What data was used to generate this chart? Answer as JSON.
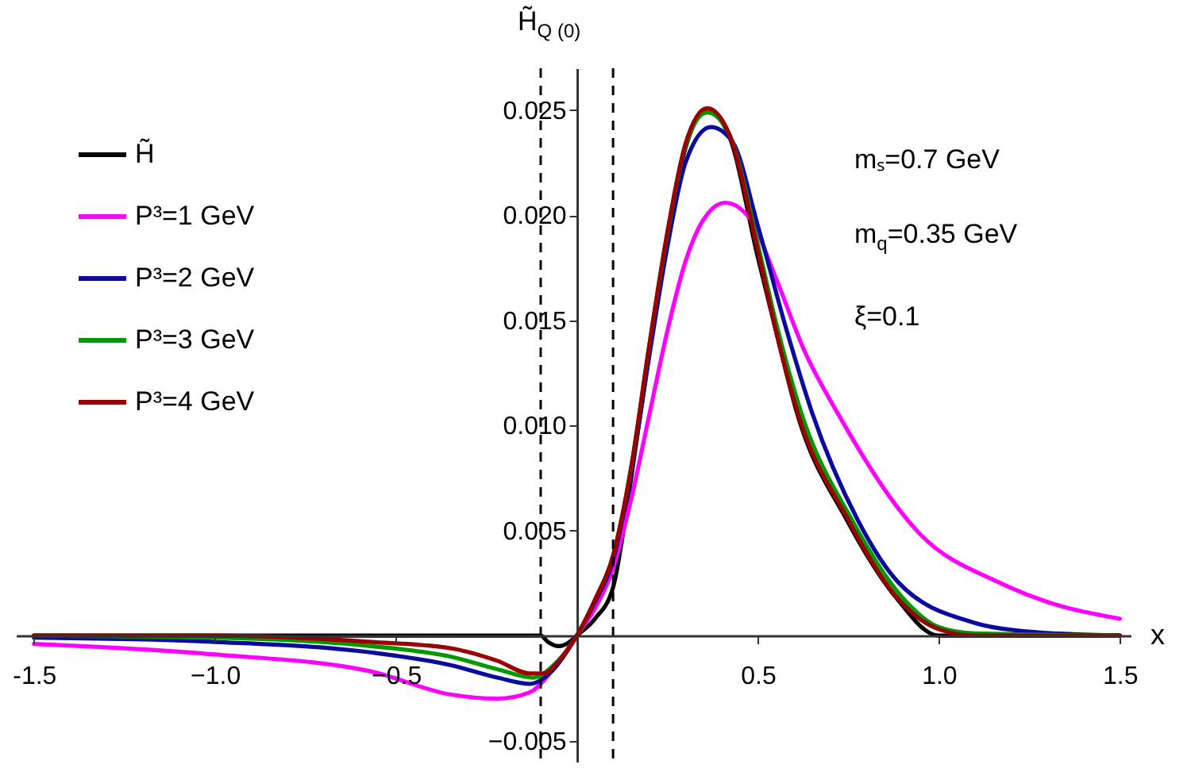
{
  "chart_data": {
    "type": "line",
    "xlabel": "x",
    "xlim": [
      -1.55,
      1.53
    ],
    "ylim": [
      -0.006,
      0.027
    ],
    "xticks": [
      -1.5,
      {
        "value": -1,
        "label": "−1.0"
      },
      {
        "value": -0.5,
        "label": "−0.5"
      },
      0.5,
      {
        "value": 1,
        "label": "1.0"
      },
      1.5
    ],
    "yticks": [
      {
        "value": -0.005,
        "label": "−0.005"
      },
      0.005,
      {
        "value": 0.01,
        "label": "0.010"
      },
      0.015,
      {
        "value": 0.02,
        "label": "0.020"
      },
      0.025
    ],
    "grid": false,
    "legend": "top left",
    "line_style": "solid",
    "marker": "none",
    "annotations": [
      "H̃$_{Q (0)}$",
      "mₛ=0.7 GeV",
      "m$_{q}$=0.35 GeV",
      "ξ=0.1"
    ],
    "ref_lines": [
      {
        "axis": "x",
        "value": -0.1,
        "color": "#000000",
        "line_style": "dashed"
      },
      {
        "axis": "x",
        "value": 0.1,
        "color": "#000000",
        "line_style": "dashed"
      }
    ],
    "series": [
      {
        "name": "H̃",
        "color": "#000000",
        "x": [
          -1.5,
          -1.0,
          -0.5,
          -0.1,
          -0.08,
          -0.05,
          -0.02,
          0,
          0.05,
          0.1,
          0.15,
          0.2,
          0.25,
          0.3,
          0.36,
          0.42,
          0.5,
          0.55,
          0.608,
          0.746,
          0.878,
          1.0,
          1.2,
          1.5
        ],
        "values": [
          0,
          0,
          0,
          0,
          -0.0003,
          -0.0005,
          -0.0003,
          0,
          0.0008,
          0.0023,
          0.0075,
          0.0135,
          0.019,
          0.0232,
          0.025,
          0.0238,
          0.018,
          0.0145,
          0.0106,
          0.0055,
          0.0019,
          0,
          0,
          0
        ]
      },
      {
        "name": "P³=1 GeV",
        "color": "#ff00ff",
        "x": [
          -1.5,
          -1.0,
          -0.57,
          -0.35,
          -0.22,
          -0.13,
          -0.07,
          0,
          0.05,
          0.1,
          0.15,
          0.2,
          0.25,
          0.3,
          0.35,
          0.41,
          0.48,
          0.55,
          0.63,
          0.72,
          0.95,
          1.17,
          1.3,
          1.5
        ],
        "values": [
          -0.0004,
          -0.0009,
          -0.0017,
          -0.0028,
          -0.003,
          -0.0027,
          -0.0017,
          0,
          0.0013,
          0.0032,
          0.0065,
          0.0105,
          0.0145,
          0.0178,
          0.0198,
          0.0206,
          0.0198,
          0.017,
          0.0135,
          0.0106,
          0.0048,
          0.0025,
          0.0016,
          0.0008
        ]
      },
      {
        "name": "P³=2 GeV",
        "color": "#0a0a9c",
        "x": [
          -1.5,
          -1.0,
          -0.57,
          -0.35,
          -0.22,
          -0.13,
          -0.07,
          0,
          0.05,
          0.1,
          0.15,
          0.2,
          0.25,
          0.3,
          0.37,
          0.43,
          0.5,
          0.58,
          0.65,
          0.776,
          0.89,
          1.1,
          1.24,
          1.5
        ],
        "values": [
          -0.0001,
          -0.0003,
          -0.0008,
          -0.0014,
          -0.002,
          -0.0023,
          -0.0017,
          0,
          0.0016,
          0.0036,
          0.0078,
          0.0133,
          0.0185,
          0.0225,
          0.0242,
          0.0235,
          0.0195,
          0.0145,
          0.0106,
          0.0055,
          0.0025,
          0.0006,
          0.0002,
          0
        ]
      },
      {
        "name": "P³=3 GeV",
        "color": "#009a00",
        "x": [
          -1.5,
          -1.0,
          -0.57,
          -0.35,
          -0.22,
          -0.12,
          -0.07,
          0,
          0.05,
          0.1,
          0.15,
          0.2,
          0.25,
          0.3,
          0.36,
          0.42,
          0.5,
          0.55,
          0.62,
          0.76,
          0.9,
          1.0,
          1.1,
          1.5
        ],
        "values": [
          0,
          -0.0001,
          -0.0005,
          -0.001,
          -0.0016,
          -0.002,
          -0.0015,
          0,
          0.0017,
          0.0038,
          0.008,
          0.0138,
          0.0191,
          0.0233,
          0.0249,
          0.0239,
          0.0186,
          0.0149,
          0.0106,
          0.0055,
          0.0018,
          0.0004,
          0.0001,
          0
        ]
      },
      {
        "name": "P³=4 GeV",
        "color": "#9a0000",
        "x": [
          -1.5,
          -1.0,
          -0.57,
          -0.35,
          -0.22,
          -0.13,
          -0.09,
          -0.05,
          0,
          0.05,
          0.1,
          0.15,
          0.2,
          0.25,
          0.3,
          0.36,
          0.42,
          0.5,
          0.55,
          0.61,
          0.75,
          0.88,
          1.0,
          1.1,
          1.5
        ],
        "values": [
          0,
          0,
          -0.0003,
          -0.0006,
          -0.0012,
          -0.0018,
          -0.0018,
          -0.0012,
          0,
          0.0017,
          0.0038,
          0.008,
          0.0138,
          0.0192,
          0.0234,
          0.0251,
          0.0239,
          0.0183,
          0.0145,
          0.0106,
          0.0055,
          0.0019,
          0.0003,
          0,
          0
        ]
      }
    ]
  }
}
